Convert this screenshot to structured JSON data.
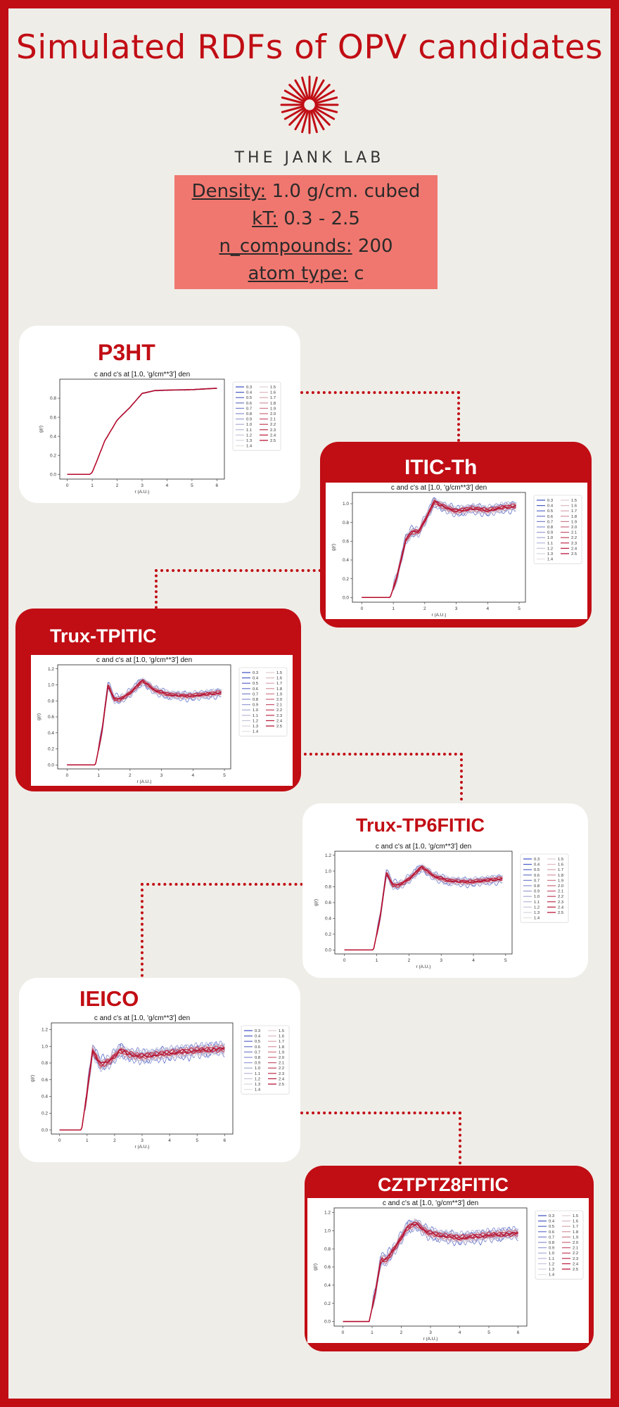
{
  "page": {
    "title": "Simulated RDFs of OPV candidates",
    "lab": "THE JANK LAB"
  },
  "params": [
    {
      "key": "Density:",
      "value": " 1.0 g/cm. cubed"
    },
    {
      "key": "kT:",
      "value": " 0.3 - 2.5"
    },
    {
      "key": "n_compounds:",
      "value": " 200"
    },
    {
      "key": "atom type:",
      "value": " c"
    }
  ],
  "colors": {
    "accent": "#c10d14",
    "background": "#efede8",
    "param_box": "#f0776f"
  },
  "legend_entries": [
    "0.3",
    "0.4",
    "0.5",
    "0.6",
    "0.7",
    "0.8",
    "0.9",
    "1.0",
    "1.1",
    "1.2",
    "1.3",
    "1.4",
    "1.5",
    "1.6",
    "1.7",
    "1.8",
    "1.9",
    "2.0",
    "2.1",
    "2.2",
    "2.3",
    "2.4",
    "2.5"
  ],
  "chart_data": [
    {
      "name": "P3HT",
      "type": "line",
      "title": "c and c's at [1.0, 'g/cm**3'] den",
      "xlabel": "r (A.U.)",
      "ylabel": "g(r)",
      "xlim": [
        -0.3,
        6.3
      ],
      "ylim": [
        -0.05,
        1.0
      ],
      "xticks": [
        0,
        1,
        2,
        3,
        4,
        5,
        6
      ],
      "yticks": [
        0.0,
        0.2,
        0.4,
        0.6,
        0.8
      ],
      "x": [
        0,
        0.9,
        1.0,
        1.2,
        1.5,
        2.0,
        2.5,
        3.0,
        3.5,
        4.0,
        5.0,
        6.0
      ],
      "g": [
        0,
        0,
        0.02,
        0.15,
        0.35,
        0.57,
        0.7,
        0.85,
        0.88,
        0.885,
        0.89,
        0.905
      ],
      "noise": 0.003,
      "legend": "top-right",
      "grid": false
    },
    {
      "name": "ITIC-Th",
      "type": "line",
      "title": "c and c's at [1.0, 'g/cm**3'] den",
      "xlabel": "r (A.U.)",
      "ylabel": "g(r)",
      "xlim": [
        -0.3,
        5.2
      ],
      "ylim": [
        -0.05,
        1.12
      ],
      "xticks": [
        0,
        1,
        2,
        3,
        4,
        5
      ],
      "yticks": [
        0.0,
        0.2,
        0.4,
        0.6,
        0.8,
        1.0
      ],
      "x": [
        0,
        0.9,
        1.1,
        1.4,
        1.6,
        1.8,
        2.0,
        2.3,
        2.6,
        3.0,
        3.5,
        4.0,
        4.5,
        5.0
      ],
      "g": [
        0,
        0,
        0.2,
        0.62,
        0.7,
        0.7,
        0.82,
        1.02,
        0.97,
        0.92,
        0.95,
        0.93,
        0.96,
        0.98
      ],
      "noise": 0.04,
      "legend": "top-right",
      "grid": false
    },
    {
      "name": "Trux-TPITIC",
      "type": "line",
      "title": "c and c's at [1.0, 'g/cm**3'] den",
      "xlabel": "r (A.U.)",
      "ylabel": "g(r)",
      "xlim": [
        -0.3,
        5.2
      ],
      "ylim": [
        -0.05,
        1.25
      ],
      "xticks": [
        0,
        1,
        2,
        3,
        4,
        5
      ],
      "yticks": [
        0.0,
        0.2,
        0.4,
        0.6,
        0.8,
        1.0,
        1.2
      ],
      "x": [
        0,
        0.9,
        1.1,
        1.3,
        1.5,
        1.7,
        2.0,
        2.4,
        2.8,
        3.2,
        3.8,
        4.4,
        5.0
      ],
      "g": [
        0,
        0,
        0.4,
        1.0,
        0.82,
        0.82,
        0.9,
        1.05,
        0.93,
        0.88,
        0.86,
        0.88,
        0.91
      ],
      "noise": 0.04,
      "legend": "top-right",
      "grid": false
    },
    {
      "name": "Trux-TP6FITIC",
      "type": "line",
      "title": "c and c's at [1.0, 'g/cm**3'] den",
      "xlabel": "r (A.U.)",
      "ylabel": "g(r)",
      "xlim": [
        -0.3,
        5.2
      ],
      "ylim": [
        -0.05,
        1.25
      ],
      "xticks": [
        0,
        1,
        2,
        3,
        4,
        5
      ],
      "yticks": [
        0.0,
        0.2,
        0.4,
        0.6,
        0.8,
        1.0,
        1.2
      ],
      "x": [
        0,
        0.9,
        1.1,
        1.3,
        1.5,
        1.7,
        2.0,
        2.4,
        2.8,
        3.2,
        3.8,
        4.4,
        5.0
      ],
      "g": [
        0,
        0,
        0.4,
        0.98,
        0.82,
        0.82,
        0.9,
        1.05,
        0.93,
        0.88,
        0.86,
        0.88,
        0.91
      ],
      "noise": 0.04,
      "legend": "top-right",
      "grid": false
    },
    {
      "name": "IEICO",
      "type": "line",
      "title": "c and c's at [1.0, 'g/cm**3'] den",
      "xlabel": "r (A.U.)",
      "ylabel": "g(r)",
      "xlim": [
        -0.3,
        6.3
      ],
      "ylim": [
        -0.05,
        1.28
      ],
      "xticks": [
        0,
        1,
        2,
        3,
        4,
        5,
        6
      ],
      "yticks": [
        0.0,
        0.2,
        0.4,
        0.6,
        0.8,
        1.0,
        1.2
      ],
      "x": [
        0,
        0.8,
        1.0,
        1.2,
        1.5,
        1.8,
        2.2,
        2.6,
        3.0,
        3.5,
        4.0,
        5.0,
        6.0
      ],
      "g": [
        0,
        0,
        0.45,
        0.95,
        0.78,
        0.82,
        0.95,
        0.9,
        0.88,
        0.9,
        0.92,
        0.95,
        0.97
      ],
      "noise": 0.06,
      "legend": "top-right",
      "grid": false
    },
    {
      "name": "CZTPTZ8FITIC",
      "type": "line",
      "title": "c and c's at [1.0, 'g/cm**3'] den",
      "xlabel": "r (A.U.)",
      "ylabel": "g(r)",
      "xlim": [
        -0.3,
        6.3
      ],
      "ylim": [
        -0.05,
        1.25
      ],
      "xticks": [
        0,
        1,
        2,
        3,
        4,
        5,
        6
      ],
      "yticks": [
        0.0,
        0.2,
        0.4,
        0.6,
        0.8,
        1.0,
        1.2
      ],
      "x": [
        0,
        0.9,
        1.1,
        1.3,
        1.5,
        1.8,
        2.2,
        2.5,
        2.9,
        3.3,
        4.0,
        5.0,
        6.0
      ],
      "g": [
        0,
        0,
        0.3,
        0.68,
        0.68,
        0.82,
        1.03,
        1.08,
        0.98,
        0.95,
        0.92,
        0.95,
        0.97
      ],
      "noise": 0.05,
      "legend": "top-right",
      "grid": false
    }
  ]
}
